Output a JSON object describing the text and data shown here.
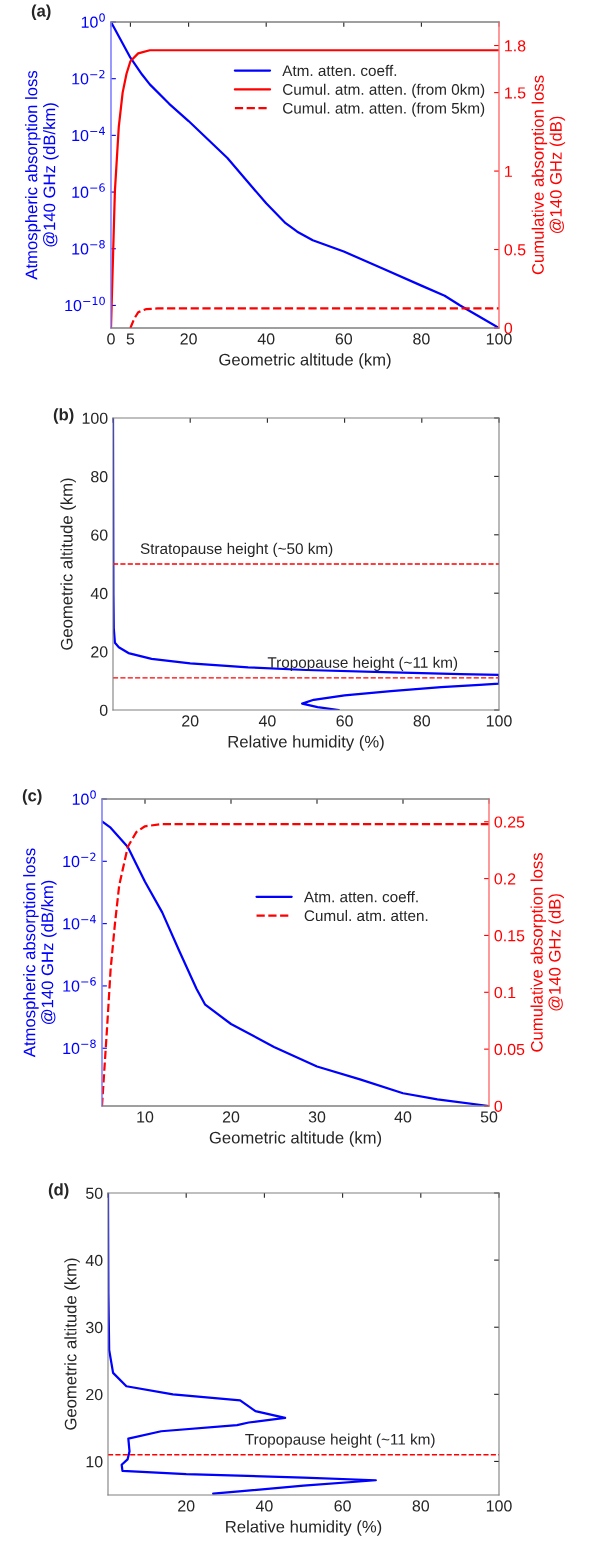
{
  "chart_data": [
    {
      "type": "line",
      "xlabel": "Geometric altitude (km)",
      "ylabel": "Atmospheric absorption loss\n@140 GHz (dB/km)",
      "y2label": "Cumulative absorption loss\n@140 GHz (dB)",
      "annotations": [
        "(a)"
      ],
      "log": "y",
      "legend": "top right",
      "grid": false,
      "xlim": [
        0,
        100
      ],
      "xticks": [
        0,
        5,
        20,
        40,
        60,
        80,
        100
      ],
      "ylim": [
        1.6e-11,
        1
      ],
      "yticks": [
        {
          "value": 1,
          "label": "10$^{0}$"
        },
        {
          "value": 0.01,
          "label": "10$^{−2}$"
        },
        {
          "value": 0.0001,
          "label": "10$^{−4}$"
        },
        {
          "value": 1e-06,
          "label": "10$^{−6}$"
        },
        {
          "value": 1e-08,
          "label": "10$^{−8}$"
        },
        {
          "value": 1e-10,
          "label": "10$^{−10}$"
        }
      ],
      "y2lim": [
        0,
        1.95
      ],
      "y2ticks": [
        0,
        0.5,
        1,
        1.5,
        1.8
      ],
      "series": [
        {
          "name": "Atm. atten. coeff.",
          "color": "#0000ff",
          "line_style": "solid",
          "x": [
            0,
            5,
            8,
            10,
            15,
            20,
            30,
            35,
            40,
            45,
            48,
            52,
            60,
            70,
            80,
            86,
            90,
            95,
            100
          ],
          "values": [
            1,
            0.055,
            0.014,
            0.0063,
            0.0013,
            0.00032,
            1.6e-05,
            2.5e-06,
            4e-07,
            8e-08,
            4e-08,
            2e-08,
            8e-09,
            2e-09,
            5e-10,
            2.2e-10,
            1e-10,
            4e-11,
            1.6e-11
          ]
        },
        {
          "name": "Cumul. atm. atten. (from 0km)",
          "color": "#ff0000",
          "line_style": "solid",
          "axis": "y2",
          "x": [
            0,
            1,
            2,
            3,
            4,
            5,
            7,
            10,
            15,
            100
          ],
          "values": [
            0,
            0.87,
            1.28,
            1.5,
            1.62,
            1.7,
            1.75,
            1.77,
            1.77,
            1.77
          ]
        },
        {
          "name": "Cumul. atm. atten. (from 5km)",
          "color": "#ff0000",
          "line_style": "dashed",
          "axis": "y2",
          "x": [
            5,
            6,
            7,
            9,
            12,
            100
          ],
          "values": [
            0,
            0.06,
            0.1,
            0.12,
            0.125,
            0.125
          ]
        }
      ]
    },
    {
      "type": "line",
      "xlabel": "Relative humidity (%)",
      "ylabel": "Geometric altitude (km)",
      "annotations": [
        "(b)"
      ],
      "grid": false,
      "xlim": [
        0,
        100
      ],
      "xticks": [
        {
          "value": 0,
          "label": null
        },
        20,
        40,
        60,
        80,
        100
      ],
      "ylim": [
        0,
        100
      ],
      "yticks": [
        0,
        20,
        40,
        60,
        80,
        100
      ],
      "ref_lines": [
        {
          "axis": "y",
          "value": 50,
          "label": "Stratopause height (~50 km)",
          "color": "#ff0000",
          "line_style": "dashed"
        },
        {
          "axis": "y",
          "value": 11,
          "label": "Tropopause height (~11 km)",
          "color": "#ff0000",
          "line_style": "dashed"
        }
      ],
      "series": [
        {
          "color": "#0000ff",
          "x": [
            58.5,
            53,
            49,
            52,
            60,
            72,
            85,
            95,
            100,
            100,
            90,
            70,
            50,
            35,
            20,
            10,
            4,
            1.5,
            0.5,
            0.2,
            0.1,
            0
          ],
          "values": [
            0,
            1,
            2.2,
            3.5,
            5,
            6.5,
            7.8,
            8.6,
            9,
            12,
            12.3,
            13,
            13.7,
            14.6,
            16,
            17.5,
            19.5,
            21.5,
            23,
            28,
            40,
            100
          ]
        }
      ]
    },
    {
      "type": "line",
      "xlabel": "Geometric altitude (km)",
      "ylabel": "Atmospheric absorption loss\n@140 GHz (dB/km)",
      "y2label": "Cumulative absorption loss\n@140 GHz (dB)",
      "annotations": [
        "(c)"
      ],
      "log": "y",
      "legend": "top right",
      "grid": false,
      "xlim": [
        5,
        50
      ],
      "xticks": [
        10,
        20,
        30,
        40,
        50
      ],
      "ylim": [
        1.4e-10,
        1
      ],
      "yticks": [
        {
          "value": 1,
          "label": "10$^{0}$"
        },
        {
          "value": 0.01,
          "label": "10$^{−2}$"
        },
        {
          "value": 0.0001,
          "label": "10$^{−4}$"
        },
        {
          "value": 1e-06,
          "label": "10$^{−6}$"
        },
        {
          "value": 1e-08,
          "label": "10$^{−8}$"
        }
      ],
      "y2lim": [
        0,
        0.27
      ],
      "y2ticks": [
        0,
        0.05,
        0.1,
        0.15,
        0.2,
        0.25
      ],
      "series": [
        {
          "name": "Atm. atten. coeff.",
          "color": "#0000ff",
          "line_style": "solid",
          "x": [
            5,
            6,
            8,
            10,
            12,
            14,
            16,
            17,
            20,
            25,
            30,
            35,
            40,
            44,
            50
          ],
          "values": [
            0.19,
            0.12,
            0.029,
            0.0022,
            0.00023,
            1.3e-05,
            8e-07,
            2.5e-07,
            6e-08,
            1.1e-08,
            2.6e-09,
            1e-09,
            3.6e-10,
            2.3e-10,
            1.4e-10
          ]
        },
        {
          "name": "Cumul. atm. atten.",
          "color": "#ff0000",
          "line_style": "dashed",
          "axis": "y2",
          "x": [
            5,
            5.6,
            6,
            6.5,
            7,
            8,
            9,
            10,
            12,
            50
          ],
          "values": [
            0,
            0.07,
            0.12,
            0.16,
            0.194,
            0.228,
            0.241,
            0.246,
            0.248,
            0.248
          ]
        }
      ]
    },
    {
      "type": "line",
      "xlabel": "Relative humidity (%)",
      "ylabel": "Geometric altitude (km)",
      "annotations": [
        "(d)"
      ],
      "grid": false,
      "xlim": [
        0,
        100
      ],
      "xticks": [
        {
          "value": 0,
          "label": null
        },
        20,
        40,
        60,
        80,
        100
      ],
      "ylim": [
        5,
        50
      ],
      "yticks": [
        10,
        20,
        30,
        40,
        50
      ],
      "ref_lines": [
        {
          "axis": "y",
          "value": 11,
          "label": "Tropopause height (~11 km)",
          "color": "#ff0000",
          "line_style": "dashed"
        }
      ],
      "series": [
        {
          "color": "#0000ff",
          "x": [
            26.9,
            35,
            50,
            68.5,
            50,
            20,
            3.7,
            3.5,
            5,
            5.5,
            5.2,
            13.6,
            33,
            36,
            45.3,
            37.7,
            33.8,
            16.6,
            4.7,
            1.3,
            0.3,
            0.1,
            0
          ],
          "values": [
            5.2,
            5.6,
            6.4,
            7.2,
            7.6,
            8.1,
            8.6,
            9.5,
            10.3,
            11.5,
            13.4,
            14.5,
            15.4,
            15.8,
            16.5,
            17.5,
            19.1,
            20,
            21.2,
            23.2,
            26.6,
            35,
            50
          ]
        }
      ]
    }
  ]
}
